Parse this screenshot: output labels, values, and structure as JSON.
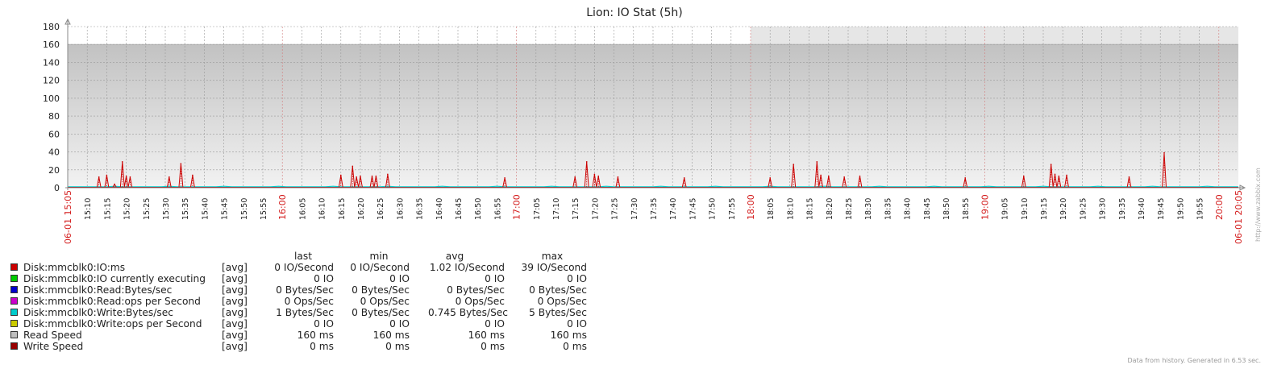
{
  "title": "Lion: IO Stat (5h)",
  "chart_data": {
    "type": "line",
    "title": "Lion: IO Stat (5h)",
    "ylim": [
      0,
      180
    ],
    "yticks": [
      0,
      20,
      40,
      60,
      80,
      100,
      120,
      140,
      160,
      180
    ],
    "x_range": [
      "15:05",
      "20:05"
    ],
    "x_tick_labels": [
      "15:10",
      "15:15",
      "15:20",
      "15:25",
      "15:30",
      "15:35",
      "15:40",
      "15:45",
      "15:50",
      "15:55",
      "16:00",
      "16:05",
      "16:10",
      "16:15",
      "16:20",
      "16:25",
      "16:30",
      "16:35",
      "16:40",
      "16:45",
      "16:50",
      "16:55",
      "17:00",
      "17:05",
      "17:10",
      "17:15",
      "17:20",
      "17:25",
      "17:30",
      "17:35",
      "17:40",
      "17:45",
      "17:50",
      "17:55",
      "18:00",
      "18:05",
      "18:10",
      "18:15",
      "18:20",
      "18:25",
      "18:30",
      "18:35",
      "18:40",
      "18:45",
      "18:50",
      "18:55",
      "19:00",
      "19:05",
      "19:10",
      "19:15",
      "19:20",
      "19:25",
      "19:30",
      "19:35",
      "19:40",
      "19:45",
      "19:50",
      "19:55",
      "20:00"
    ],
    "x_hour_labels": [
      "16:00",
      "17:00",
      "18:00",
      "19:00",
      "20:00"
    ],
    "x_start_label": "06-01 15:05",
    "x_end_label": "06-01 20:05",
    "grid": true,
    "series": [
      {
        "name": "Disk:mmcblk0:IO:ms",
        "color": "#CC0000",
        "spikes": [
          [
            "15:13",
            12
          ],
          [
            "15:15",
            14
          ],
          [
            "15:17",
            4
          ],
          [
            "15:19",
            29
          ],
          [
            "15:20",
            13
          ],
          [
            "15:21",
            12
          ],
          [
            "15:31",
            12
          ],
          [
            "15:34",
            27
          ],
          [
            "15:37",
            14
          ],
          [
            "16:15",
            14
          ],
          [
            "16:18",
            24
          ],
          [
            "16:19",
            12
          ],
          [
            "16:20",
            13
          ],
          [
            "16:23",
            13
          ],
          [
            "16:24",
            13
          ],
          [
            "16:27",
            15
          ],
          [
            "16:57",
            11
          ],
          [
            "17:15",
            12
          ],
          [
            "17:18",
            29
          ],
          [
            "17:20",
            15
          ],
          [
            "17:21",
            13
          ],
          [
            "17:26",
            12
          ],
          [
            "17:43",
            11
          ],
          [
            "18:05",
            11
          ],
          [
            "18:11",
            26
          ],
          [
            "18:17",
            29
          ],
          [
            "18:18",
            14
          ],
          [
            "18:20",
            13
          ],
          [
            "18:24",
            12
          ],
          [
            "18:28",
            13
          ],
          [
            "18:55",
            11
          ],
          [
            "19:10",
            13
          ],
          [
            "19:17",
            26
          ],
          [
            "19:18",
            15
          ],
          [
            "19:19",
            13
          ],
          [
            "19:21",
            14
          ],
          [
            "19:37",
            12
          ],
          [
            "19:46",
            39
          ]
        ]
      },
      {
        "name": "Disk:mmcblk0:IO currently executing",
        "color": "#00CC00"
      },
      {
        "name": "Disk:mmcblk0:Read:Bytes/sec",
        "color": "#0000CC"
      },
      {
        "name": "Disk:mmcblk0:Read:ops per Second",
        "color": "#CC00CC"
      },
      {
        "name": "Disk:mmcblk0:Write:Bytes/sec",
        "color": "#00CCCC",
        "baseline": 1
      },
      {
        "name": "Disk:mmcblk0:Write:ops per Second",
        "color": "#CCCC00"
      },
      {
        "name": "Read Speed",
        "color": "#C0C0C0",
        "fill": 160
      },
      {
        "name": "Write Speed",
        "color": "#990000",
        "baseline": 0
      }
    ]
  },
  "legend": {
    "headers": {
      "last": "last",
      "min": "min",
      "avg": "avg",
      "max": "max"
    },
    "rows": [
      {
        "name": "Disk:mmcblk0:IO:ms",
        "func": "[avg]",
        "last": "0 IO/Second",
        "min": "0 IO/Second",
        "avg": "1.02 IO/Second",
        "max": "39 IO/Second",
        "color": "#CC0000"
      },
      {
        "name": "Disk:mmcblk0:IO currently executing",
        "func": "[avg]",
        "last": "0 IO",
        "min": "0 IO",
        "avg": "0 IO",
        "max": "0 IO",
        "color": "#00CC00"
      },
      {
        "name": "Disk:mmcblk0:Read:Bytes/sec",
        "func": "[avg]",
        "last": "0 Bytes/Sec",
        "min": "0 Bytes/Sec",
        "avg": "0 Bytes/Sec",
        "max": "0 Bytes/Sec",
        "color": "#0000CC"
      },
      {
        "name": "Disk:mmcblk0:Read:ops per Second",
        "func": "[avg]",
        "last": "0 Ops/Sec",
        "min": "0 Ops/Sec",
        "avg": "0 Ops/Sec",
        "max": "0 Ops/Sec",
        "color": "#CC00CC"
      },
      {
        "name": "Disk:mmcblk0:Write:Bytes/sec",
        "func": "[avg]",
        "last": "1 Bytes/Sec",
        "min": "0 Bytes/Sec",
        "avg": "0.745 Bytes/Sec",
        "max": "5 Bytes/Sec",
        "color": "#00CCCC"
      },
      {
        "name": "Disk:mmcblk0:Write:ops per Second",
        "func": "[avg]",
        "last": "0 IO",
        "min": "0 IO",
        "avg": "0 IO",
        "max": "0 IO",
        "color": "#CCCC00"
      },
      {
        "name": "Read Speed",
        "func": "[avg]",
        "last": "160 ms",
        "min": "160 ms",
        "avg": "160 ms",
        "max": "160 ms",
        "color": "#C0C0C0"
      },
      {
        "name": "Write Speed",
        "func": "[avg]",
        "last": "0 ms",
        "min": "0 ms",
        "avg": "0 ms",
        "max": "0 ms",
        "color": "#990000"
      }
    ]
  },
  "footer": "Data from history. Generated in 6.53 sec.",
  "watermark": "http://www.zabbix.com"
}
